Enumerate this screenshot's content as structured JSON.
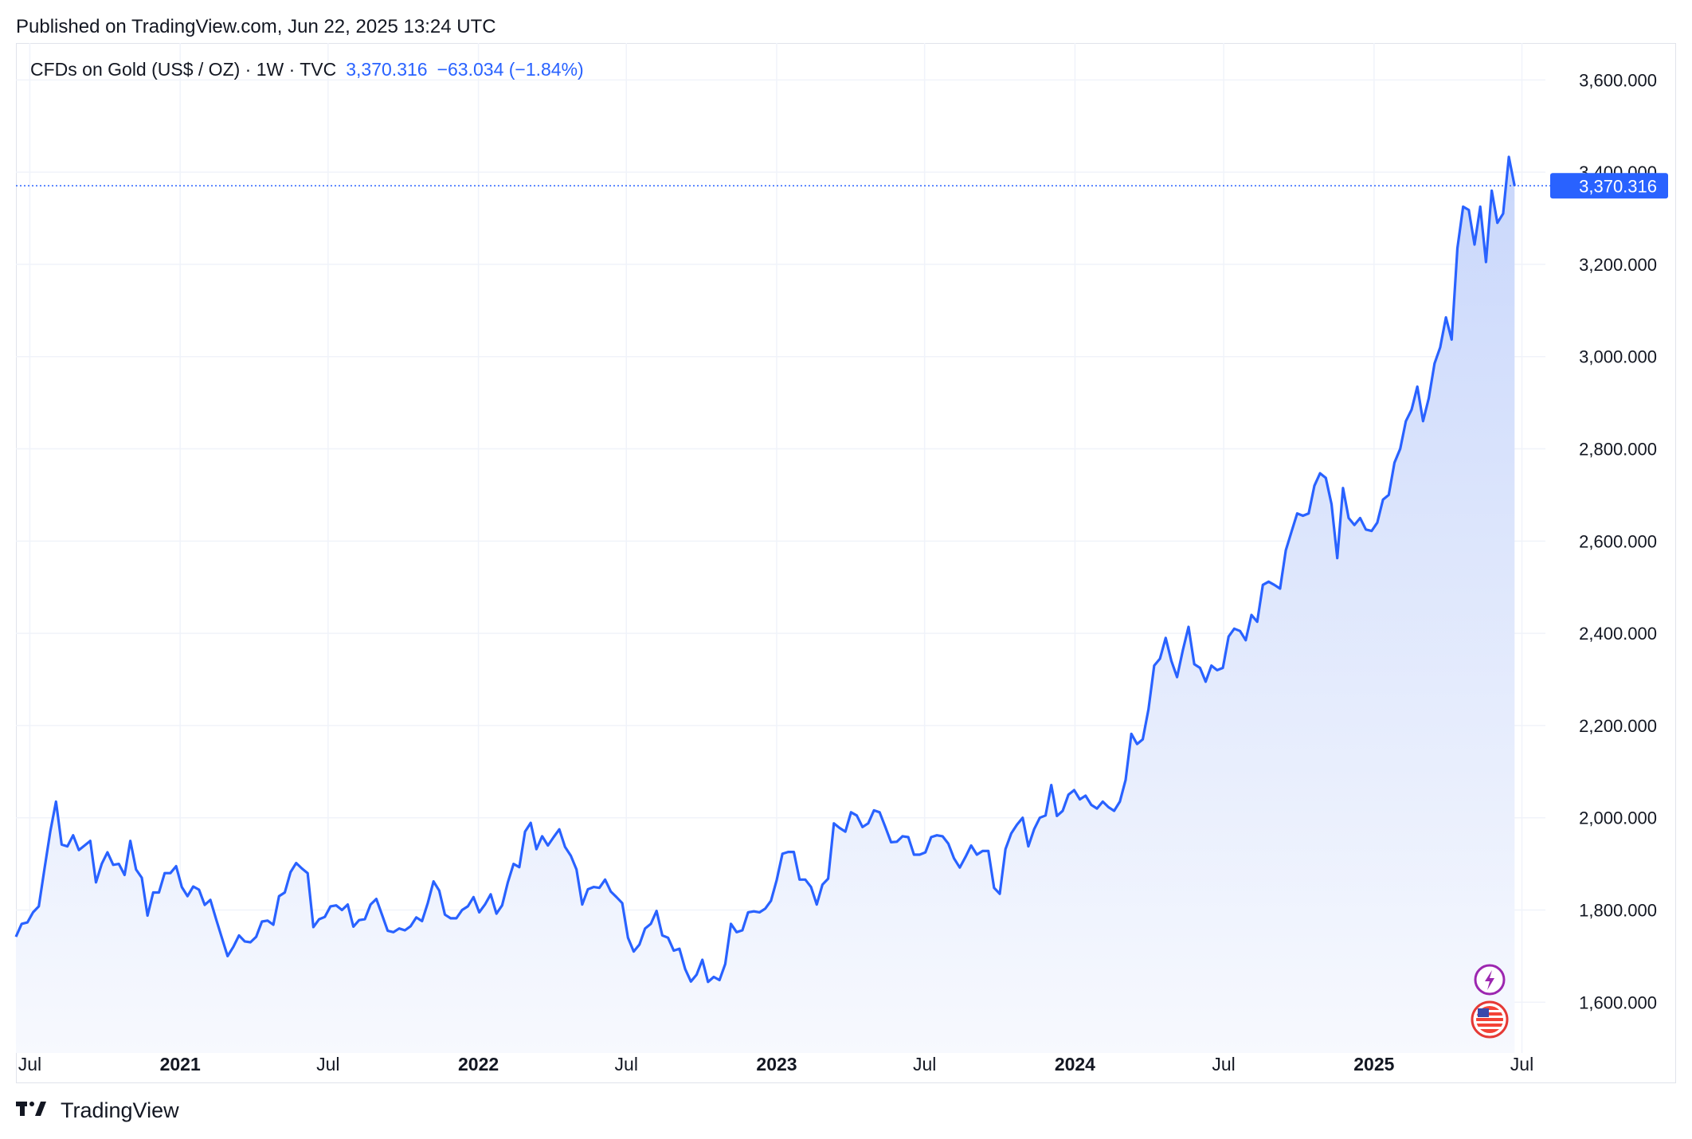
{
  "header": {
    "published_text": "Published on TradingView.com, Jun 22, 2025 13:24 UTC"
  },
  "legend": {
    "symbol": "CFDs on Gold (US$ / OZ) · 1W · TVC",
    "price": "3,370.316",
    "change": "−63.034 (−1.84%)"
  },
  "footer": {
    "brand": "TradingView",
    "logo_icon": "tradingview-logo-icon"
  },
  "colors": {
    "line": "#2962ff",
    "badge_bg": "#2962ff",
    "grid": "#f0f3fa",
    "area_top": "#c9d7fb",
    "area_bottom": "#f7f9fe"
  },
  "event_icons": [
    "lightning-icon",
    "us-flag-icon"
  ],
  "chart_data": {
    "type": "area",
    "title": "",
    "xlabel": "",
    "ylabel": "",
    "ylim": [
      1490,
      3680
    ],
    "xlim": [
      "2020-06-14",
      "2025-07-20"
    ],
    "y_ticks": [
      1600,
      1800,
      2000,
      2200,
      2400,
      2600,
      2800,
      3000,
      3200,
      3400,
      3600
    ],
    "y_tick_labels": [
      "1,600.000",
      "1,800.000",
      "2,000.000",
      "2,200.000",
      "2,400.000",
      "2,600.000",
      "2,800.000",
      "3,000.000",
      "3,200.000",
      "3,400.000",
      "3,600.000"
    ],
    "x_ticks": [
      {
        "date": "2020-07-01",
        "label": "Jul",
        "bold": false
      },
      {
        "date": "2021-01-01",
        "label": "2021",
        "bold": true
      },
      {
        "date": "2021-07-01",
        "label": "Jul",
        "bold": false
      },
      {
        "date": "2022-01-01",
        "label": "2022",
        "bold": true
      },
      {
        "date": "2022-07-01",
        "label": "Jul",
        "bold": false
      },
      {
        "date": "2023-01-01",
        "label": "2023",
        "bold": true
      },
      {
        "date": "2023-07-01",
        "label": "Jul",
        "bold": false
      },
      {
        "date": "2024-01-01",
        "label": "2024",
        "bold": true
      },
      {
        "date": "2024-07-01",
        "label": "Jul",
        "bold": false
      },
      {
        "date": "2025-01-01",
        "label": "2025",
        "bold": true
      },
      {
        "date": "2025-07-01",
        "label": "Jul",
        "bold": false
      }
    ],
    "last_price": 3370.316,
    "last_price_label": "3,370.316",
    "grid": true,
    "series": [
      {
        "start": "2020-06-14",
        "interval_days": 7,
        "values": [
          1742,
          1770,
          1773,
          1795,
          1808,
          1890,
          1970,
          2035,
          1942,
          1938,
          1962,
          1930,
          1940,
          1950,
          1860,
          1900,
          1925,
          1898,
          1900,
          1876,
          1950,
          1888,
          1870,
          1788,
          1838,
          1838,
          1880,
          1880,
          1895,
          1850,
          1830,
          1851,
          1844,
          1811,
          1822,
          1780,
          1740,
          1700,
          1720,
          1745,
          1732,
          1730,
          1742,
          1775,
          1777,
          1768,
          1830,
          1838,
          1882,
          1902,
          1890,
          1880,
          1763,
          1780,
          1785,
          1808,
          1810,
          1800,
          1812,
          1764,
          1778,
          1780,
          1812,
          1824,
          1790,
          1755,
          1752,
          1760,
          1756,
          1765,
          1784,
          1776,
          1815,
          1862,
          1842,
          1790,
          1782,
          1782,
          1800,
          1808,
          1828,
          1795,
          1812,
          1834,
          1792,
          1810,
          1860,
          1900,
          1893,
          1970,
          1989,
          1932,
          1960,
          1940,
          1958,
          1975,
          1937,
          1918,
          1888,
          1812,
          1845,
          1850,
          1848,
          1866,
          1840,
          1828,
          1815,
          1740,
          1710,
          1725,
          1760,
          1770,
          1798,
          1745,
          1740,
          1712,
          1716,
          1672,
          1645,
          1660,
          1692,
          1644,
          1655,
          1648,
          1683,
          1770,
          1752,
          1756,
          1795,
          1797,
          1795,
          1803,
          1820,
          1865,
          1922,
          1926,
          1926,
          1866,
          1866,
          1850,
          1812,
          1855,
          1868,
          1988,
          1978,
          1970,
          2012,
          2005,
          1980,
          1988,
          2016,
          2012,
          1980,
          1947,
          1948,
          1960,
          1958,
          1920,
          1920,
          1925,
          1958,
          1962,
          1960,
          1944,
          1912,
          1892,
          1915,
          1940,
          1920,
          1928,
          1928,
          1848,
          1835,
          1932,
          1966,
          1985,
          2000,
          1938,
          1975,
          2000,
          2005,
          2071,
          2004,
          2015,
          2050,
          2060,
          2040,
          2048,
          2028,
          2020,
          2035,
          2023,
          2015,
          2035,
          2082,
          2182,
          2160,
          2170,
          2235,
          2330,
          2345,
          2390,
          2340,
          2305,
          2363,
          2414,
          2333,
          2325,
          2295,
          2330,
          2320,
          2325,
          2393,
          2410,
          2405,
          2385,
          2440,
          2425,
          2505,
          2512,
          2505,
          2497,
          2580,
          2620,
          2660,
          2655,
          2660,
          2720,
          2747,
          2737,
          2680,
          2563,
          2715,
          2650,
          2635,
          2650,
          2625,
          2622,
          2640,
          2690,
          2700,
          2770,
          2800,
          2860,
          2885,
          2935,
          2860,
          2910,
          2985,
          3020,
          3085,
          3037,
          3235,
          3325,
          3318,
          3243,
          3325,
          3205,
          3360,
          3290,
          3310,
          3433,
          3370
        ]
      }
    ]
  }
}
